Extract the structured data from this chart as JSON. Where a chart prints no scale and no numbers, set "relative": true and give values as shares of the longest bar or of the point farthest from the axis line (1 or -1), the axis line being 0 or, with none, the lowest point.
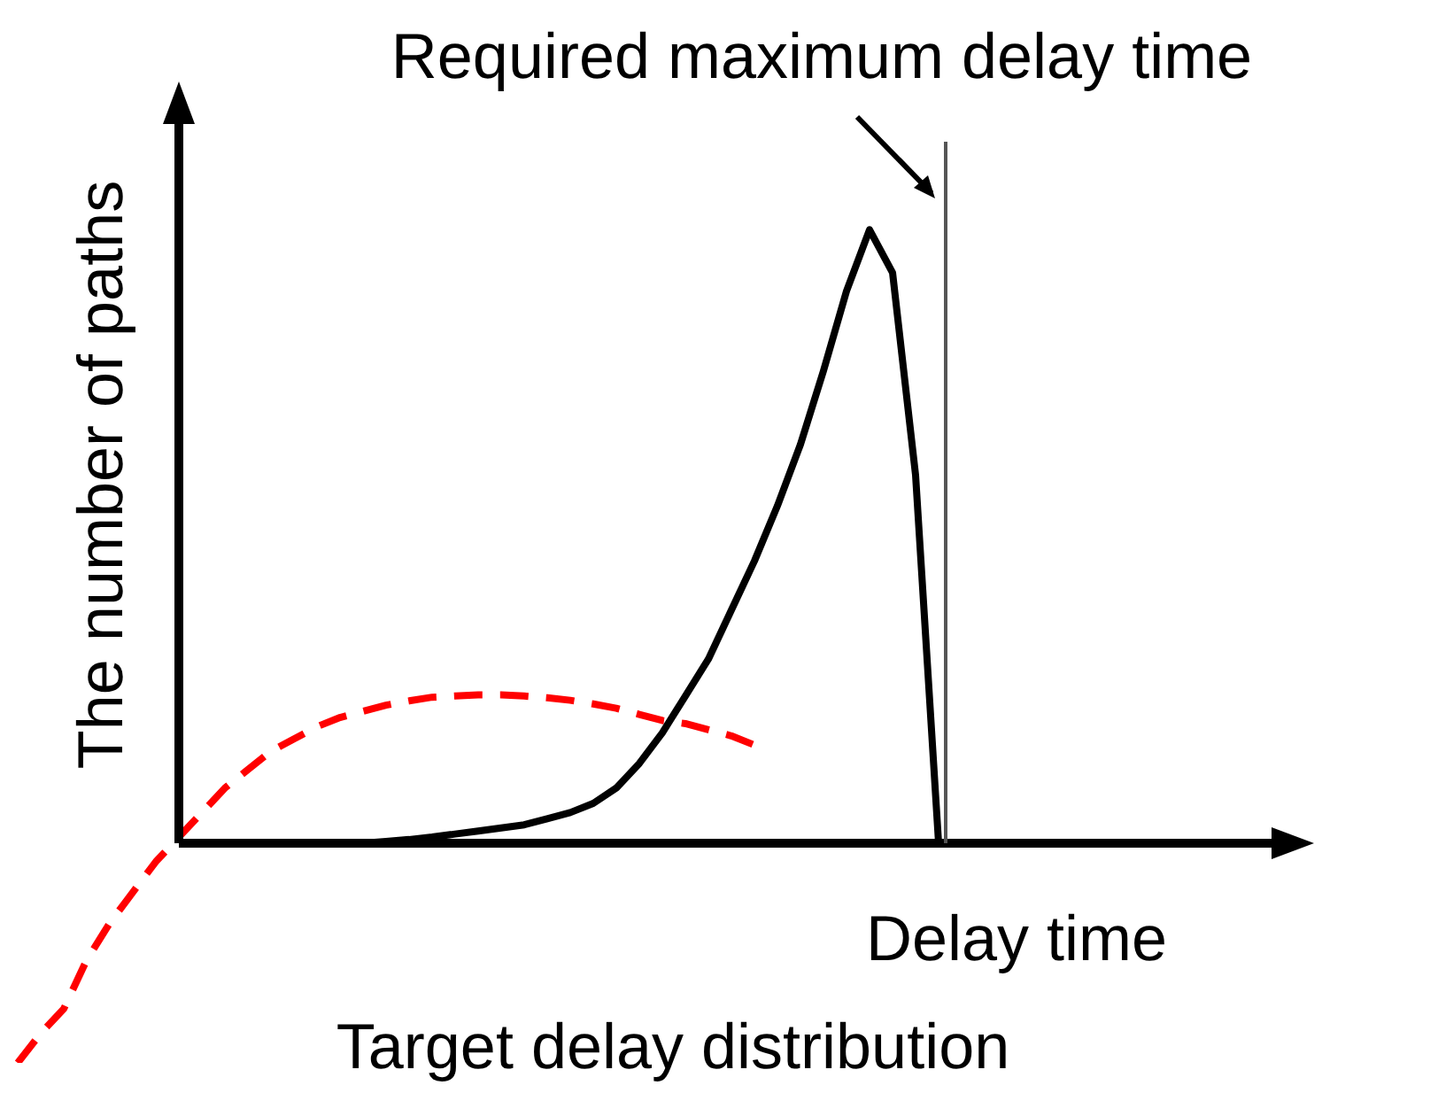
{
  "chart_data": {
    "type": "line",
    "relative": true,
    "xlabel": "Delay time",
    "ylabel": "The number of paths",
    "legend": false,
    "grid": false,
    "marker": "none",
    "categories": [
      null,
      null,
      null,
      null,
      null,
      null,
      null,
      null,
      null,
      null,
      null,
      null,
      null,
      null,
      null,
      null,
      null,
      null,
      null,
      null,
      null,
      null,
      null,
      null,
      null,
      null,
      null,
      null,
      null,
      null,
      null,
      null,
      null,
      null,
      null,
      null,
      null,
      null,
      null,
      null,
      null,
      null,
      null,
      null,
      null,
      null,
      null,
      null,
      null,
      null,
      null,
      null,
      null,
      null,
      null,
      null,
      null
    ],
    "series": [
      {
        "color": "#000000",
        "line_style": "solid",
        "values": [
          null,
          null,
          null,
          null,
          null,
          null,
          null,
          0,
          0,
          0,
          0,
          0,
          0,
          0,
          0,
          0,
          0.003,
          0.006,
          0.01,
          0.015,
          0.02,
          0.025,
          0.03,
          0.04,
          0.05,
          0.065,
          0.09,
          0.13,
          0.18,
          0.24,
          0.3,
          0.38,
          0.46,
          0.55,
          0.65,
          0.77,
          0.9,
          1,
          0.93,
          0.6,
          0,
          null,
          null,
          null,
          null,
          null,
          null,
          null,
          null,
          null,
          null,
          null,
          null,
          null,
          null,
          null,
          null
        ]
      },
      {
        "color": "#ff0000",
        "line_style": "dashed",
        "values": [
          -0.358,
          -0.31,
          -0.27,
          -0.19,
          -0.13,
          -0.08,
          -0.03,
          0.01,
          0.05,
          0.09,
          0.12,
          0.15,
          0.17,
          0.19,
          0.205,
          0.215,
          0.225,
          0.232,
          0.238,
          0.24,
          0.242,
          0.242,
          0.24,
          0.237,
          0.233,
          0.227,
          0.22,
          0.21,
          0.2,
          0.195,
          0.185,
          0.175,
          0.16,
          null,
          null,
          null,
          null,
          null,
          null,
          null,
          null,
          null,
          null,
          null,
          null,
          null,
          null,
          null,
          null,
          null,
          null,
          null,
          null,
          null,
          null,
          null,
          null
        ]
      }
    ],
    "annotations": [
      "Required maximum delay time",
      "Target delay distribution"
    ]
  }
}
